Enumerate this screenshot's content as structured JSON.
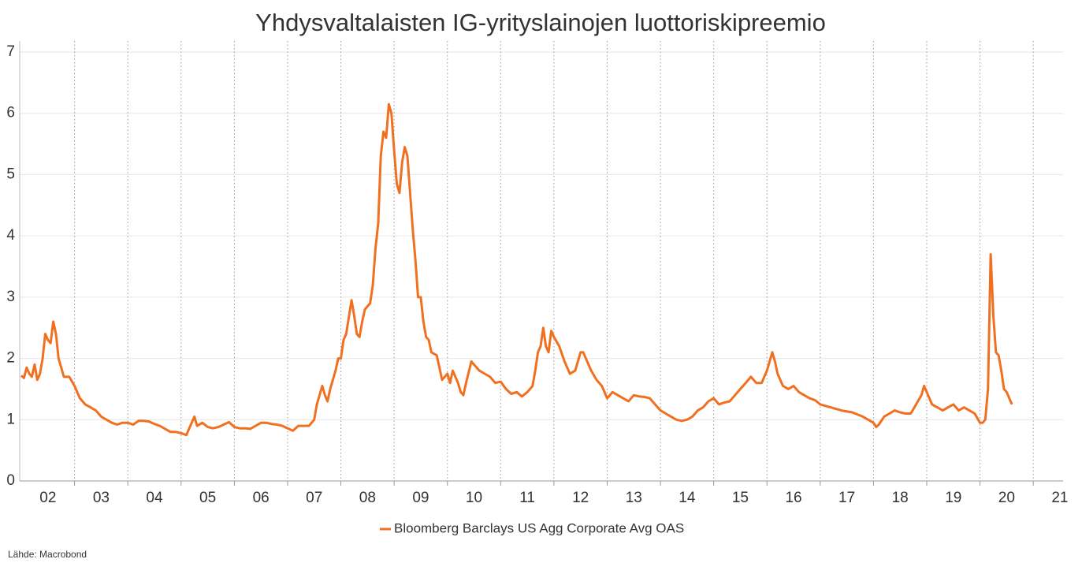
{
  "chart_data": {
    "type": "line",
    "title": "Yhdysvaltalaisten IG-yrityslainojen luottoriskipreemio",
    "source": "Lähde: Macrobond",
    "xlim": [
      2001.97,
      2021.56
    ],
    "ylim": [
      0,
      7
    ],
    "yticks": [
      0,
      1,
      2,
      3,
      4,
      5,
      6,
      7
    ],
    "xticks": [
      {
        "value": 2002.5,
        "label": "02"
      },
      {
        "value": 2003.5,
        "label": "03"
      },
      {
        "value": 2004.5,
        "label": "04"
      },
      {
        "value": 2005.5,
        "label": "05"
      },
      {
        "value": 2006.5,
        "label": "06"
      },
      {
        "value": 2007.5,
        "label": "07"
      },
      {
        "value": 2008.5,
        "label": "08"
      },
      {
        "value": 2009.5,
        "label": "09"
      },
      {
        "value": 2010.5,
        "label": "10"
      },
      {
        "value": 2011.5,
        "label": "11"
      },
      {
        "value": 2012.5,
        "label": "12"
      },
      {
        "value": 2013.5,
        "label": "13"
      },
      {
        "value": 2014.5,
        "label": "14"
      },
      {
        "value": 2015.5,
        "label": "15"
      },
      {
        "value": 2016.5,
        "label": "16"
      },
      {
        "value": 2017.5,
        "label": "17"
      },
      {
        "value": 2018.5,
        "label": "18"
      },
      {
        "value": 2019.5,
        "label": "19"
      },
      {
        "value": 2020.5,
        "label": "20"
      },
      {
        "value": 2021.5,
        "label": "21"
      }
    ],
    "xminor": [
      2003,
      2004,
      2005,
      2006,
      2007,
      2008,
      2009,
      2010,
      2011,
      2012,
      2013,
      2014,
      2015,
      2016,
      2017,
      2018,
      2019,
      2020,
      2021
    ],
    "grid": true,
    "legend": "bottom",
    "series": [
      {
        "name": "Bloomberg Barclays US Agg Corporate Avg OAS",
        "color": "#f07020",
        "x": [
          2002.0,
          2002.05,
          2002.1,
          2002.15,
          2002.2,
          2002.25,
          2002.3,
          2002.35,
          2002.4,
          2002.45,
          2002.5,
          2002.55,
          2002.6,
          2002.65,
          2002.7,
          2002.75,
          2002.8,
          2002.9,
          2003.0,
          2003.1,
          2003.2,
          2003.3,
          2003.4,
          2003.5,
          2003.6,
          2003.7,
          2003.8,
          2003.9,
          2004.0,
          2004.1,
          2004.2,
          2004.3,
          2004.4,
          2004.5,
          2004.6,
          2004.7,
          2004.8,
          2004.9,
          2005.0,
          2005.1,
          2005.15,
          2005.25,
          2005.3,
          2005.4,
          2005.5,
          2005.6,
          2005.7,
          2005.8,
          2005.9,
          2006.0,
          2006.1,
          2006.2,
          2006.3,
          2006.4,
          2006.5,
          2006.6,
          2006.7,
          2006.8,
          2006.9,
          2007.0,
          2007.1,
          2007.2,
          2007.3,
          2007.4,
          2007.5,
          2007.55,
          2007.6,
          2007.65,
          2007.7,
          2007.75,
          2007.8,
          2007.9,
          2007.95,
          2008.0,
          2008.05,
          2008.1,
          2008.2,
          2008.25,
          2008.3,
          2008.35,
          2008.4,
          2008.45,
          2008.55,
          2008.6,
          2008.65,
          2008.7,
          2008.75,
          2008.8,
          2008.85,
          2008.9,
          2008.95,
          2009.0,
          2009.05,
          2009.1,
          2009.15,
          2009.2,
          2009.25,
          2009.3,
          2009.35,
          2009.4,
          2009.45,
          2009.5,
          2009.55,
          2009.6,
          2009.65,
          2009.7,
          2009.8,
          2009.85,
          2009.9,
          2010.0,
          2010.05,
          2010.1,
          2010.2,
          2010.25,
          2010.3,
          2010.35,
          2010.45,
          2010.55,
          2010.6,
          2010.7,
          2010.8,
          2010.9,
          2011.0,
          2011.1,
          2011.2,
          2011.3,
          2011.4,
          2011.5,
          2011.6,
          2011.65,
          2011.7,
          2011.75,
          2011.8,
          2011.85,
          2011.9,
          2011.95,
          2012.0,
          2012.1,
          2012.2,
          2012.3,
          2012.4,
          2012.5,
          2012.55,
          2012.6,
          2012.7,
          2012.8,
          2012.9,
          2013.0,
          2013.1,
          2013.2,
          2013.3,
          2013.4,
          2013.5,
          2013.6,
          2013.7,
          2013.8,
          2013.9,
          2014.0,
          2014.1,
          2014.2,
          2014.3,
          2014.4,
          2014.5,
          2014.6,
          2014.7,
          2014.8,
          2014.9,
          2015.0,
          2015.1,
          2015.2,
          2015.3,
          2015.4,
          2015.5,
          2015.6,
          2015.7,
          2015.8,
          2015.9,
          2016.0,
          2016.1,
          2016.15,
          2016.2,
          2016.3,
          2016.4,
          2016.5,
          2016.6,
          2016.7,
          2016.8,
          2016.9,
          2017.0,
          2017.2,
          2017.4,
          2017.6,
          2017.8,
          2017.9,
          2018.0,
          2018.05,
          2018.1,
          2018.2,
          2018.3,
          2018.4,
          2018.5,
          2018.6,
          2018.7,
          2018.8,
          2018.9,
          2018.95,
          2019.0,
          2019.1,
          2019.2,
          2019.3,
          2019.4,
          2019.5,
          2019.6,
          2019.7,
          2019.8,
          2019.9,
          2020.0,
          2020.05,
          2020.1,
          2020.15,
          2020.2,
          2020.25,
          2020.3,
          2020.35,
          2020.4,
          2020.45,
          2020.5,
          2020.55,
          2020.6
        ],
        "values": [
          1.72,
          1.68,
          1.85,
          1.75,
          1.7,
          1.9,
          1.65,
          1.75,
          2.0,
          2.4,
          2.3,
          2.25,
          2.6,
          2.4,
          2.0,
          1.85,
          1.7,
          1.7,
          1.55,
          1.35,
          1.25,
          1.2,
          1.15,
          1.05,
          1.0,
          0.95,
          0.92,
          0.95,
          0.95,
          0.92,
          0.98,
          0.98,
          0.97,
          0.93,
          0.9,
          0.85,
          0.8,
          0.8,
          0.78,
          0.75,
          0.85,
          1.05,
          0.9,
          0.95,
          0.88,
          0.86,
          0.88,
          0.92,
          0.96,
          0.88,
          0.86,
          0.86,
          0.85,
          0.9,
          0.95,
          0.95,
          0.93,
          0.92,
          0.9,
          0.86,
          0.82,
          0.9,
          0.9,
          0.9,
          1.0,
          1.25,
          1.4,
          1.55,
          1.4,
          1.3,
          1.5,
          1.8,
          2.0,
          2.0,
          2.3,
          2.4,
          2.95,
          2.7,
          2.4,
          2.35,
          2.6,
          2.8,
          2.9,
          3.2,
          3.8,
          4.2,
          5.3,
          5.7,
          5.6,
          6.15,
          6.0,
          5.4,
          4.85,
          4.7,
          5.2,
          5.45,
          5.3,
          4.7,
          4.1,
          3.6,
          3.0,
          3.0,
          2.6,
          2.35,
          2.3,
          2.1,
          2.05,
          1.85,
          1.65,
          1.75,
          1.6,
          1.8,
          1.6,
          1.45,
          1.4,
          1.6,
          1.95,
          1.85,
          1.8,
          1.75,
          1.7,
          1.6,
          1.62,
          1.5,
          1.42,
          1.45,
          1.38,
          1.45,
          1.55,
          1.8,
          2.1,
          2.2,
          2.5,
          2.2,
          2.1,
          2.45,
          2.35,
          2.2,
          1.95,
          1.75,
          1.8,
          2.1,
          2.1,
          2.0,
          1.8,
          1.65,
          1.55,
          1.35,
          1.45,
          1.4,
          1.35,
          1.3,
          1.4,
          1.38,
          1.37,
          1.35,
          1.25,
          1.15,
          1.1,
          1.05,
          1.0,
          0.98,
          1.0,
          1.05,
          1.15,
          1.2,
          1.3,
          1.35,
          1.25,
          1.28,
          1.3,
          1.4,
          1.5,
          1.6,
          1.7,
          1.6,
          1.6,
          1.8,
          2.1,
          1.95,
          1.75,
          1.55,
          1.5,
          1.55,
          1.45,
          1.4,
          1.35,
          1.32,
          1.25,
          1.2,
          1.15,
          1.12,
          1.05,
          1.0,
          0.95,
          0.88,
          0.92,
          1.05,
          1.1,
          1.15,
          1.12,
          1.1,
          1.1,
          1.25,
          1.4,
          1.55,
          1.45,
          1.25,
          1.2,
          1.15,
          1.2,
          1.25,
          1.15,
          1.2,
          1.15,
          1.1,
          0.95,
          0.95,
          1.0,
          1.5,
          3.7,
          2.7,
          2.1,
          2.05,
          1.8,
          1.5,
          1.45,
          1.35,
          1.25
        ]
      }
    ]
  }
}
